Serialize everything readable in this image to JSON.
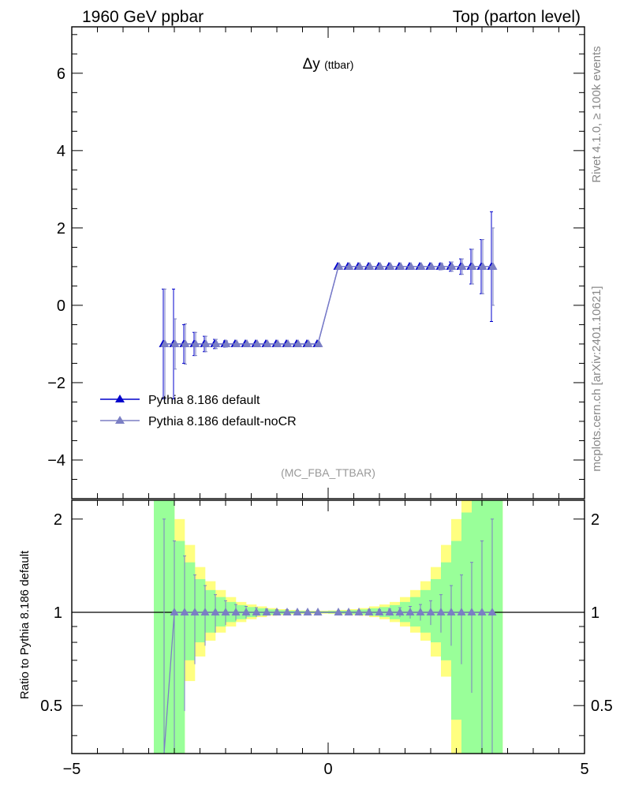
{
  "header": {
    "left": "1960 GeV ppbar",
    "right": "Top (parton level)"
  },
  "side_labels": {
    "rivet": "Rivet 4.1.0, ≥ 100k events",
    "mcplots": "mcplots.cern.ch [arXiv:2401.10621]"
  },
  "chart_data": [
    {
      "type": "line",
      "title": "Δy",
      "title_suffix": "(ttbar)",
      "analysis": "(MC_FBA_TTBAR)",
      "xlabel": "",
      "ylabel": "",
      "xlim": [
        -5,
        5
      ],
      "ylim": [
        -5,
        7.2
      ],
      "y_ticks": [
        "−4",
        "−2",
        "0",
        "2",
        "4",
        "6"
      ],
      "y_tick_values": [
        -4,
        -2,
        0,
        2,
        4,
        6
      ],
      "x": [
        -3.2,
        -3.0,
        -2.8,
        -2.6,
        -2.4,
        -2.2,
        -2.0,
        -1.8,
        -1.6,
        -1.4,
        -1.2,
        -1.0,
        -0.8,
        -0.6,
        -0.4,
        -0.2,
        0.2,
        0.4,
        0.6,
        0.8,
        1.0,
        1.2,
        1.4,
        1.6,
        1.8,
        2.0,
        2.2,
        2.4,
        2.6,
        2.8,
        3.0,
        3.2
      ],
      "series": [
        {
          "name": "Pythia 8.186 default",
          "color": "#0000cc",
          "values": [
            -1,
            -1,
            -1,
            -1,
            -1,
            -1,
            -1,
            -1,
            -1,
            -1,
            -1,
            -1,
            -1,
            -1,
            -1,
            -1,
            1,
            1,
            1,
            1,
            1,
            1,
            1,
            1,
            1,
            1,
            1,
            1,
            1,
            1,
            1,
            1
          ],
          "errors": [
            1.42,
            1.42,
            0.5,
            0.3,
            0.2,
            0.12,
            0.08,
            0.05,
            0.04,
            0.03,
            0.02,
            0.02,
            0.02,
            0.02,
            0.02,
            0.02,
            0.02,
            0.02,
            0.02,
            0.02,
            0.02,
            0.02,
            0.02,
            0.03,
            0.04,
            0.05,
            0.08,
            0.12,
            0.2,
            0.45,
            0.7,
            1.42
          ]
        },
        {
          "name": "Pythia 8.186 default-noCR",
          "color": "#7b7fc4",
          "values": [
            -1,
            -1,
            -1,
            -1,
            -1,
            -1,
            -1,
            -1,
            -1,
            -1,
            -1,
            -1,
            -1,
            -1,
            -1,
            -1,
            1,
            1,
            1,
            1,
            1,
            1,
            1,
            1,
            1,
            1,
            1,
            1,
            1,
            1,
            1,
            1
          ],
          "errors": [
            1.42,
            0.65,
            0.52,
            0.3,
            0.2,
            0.12,
            0.08,
            0.05,
            0.04,
            0.03,
            0.02,
            0.02,
            0.02,
            0.02,
            0.02,
            0.02,
            0.02,
            0.02,
            0.02,
            0.02,
            0.02,
            0.02,
            0.02,
            0.03,
            0.04,
            0.05,
            0.08,
            0.12,
            0.2,
            0.45,
            0.7,
            1.0
          ]
        }
      ]
    },
    {
      "type": "line",
      "title": "",
      "ylabel": "Ratio to Pythia 8.186 default",
      "xlim": [
        -5,
        5
      ],
      "ylim": [
        0.35,
        2.3
      ],
      "y_ticks": [
        "0.5",
        "1",
        "2"
      ],
      "y_tick_values": [
        0.5,
        1,
        2
      ],
      "x_ticks": [
        "−5",
        "0",
        "5"
      ],
      "x_tick_values": [
        -5,
        0,
        5
      ],
      "reference_line": 1,
      "bands": {
        "edges": [
          -3.4,
          -3.2,
          -3.0,
          -2.8,
          -2.6,
          -2.4,
          -2.2,
          -2.0,
          -1.8,
          -1.6,
          -1.4,
          -1.2,
          -1.0,
          -0.8,
          -0.6,
          -0.4,
          -0.2,
          0.0,
          0.2,
          0.4,
          0.6,
          0.8,
          1.0,
          1.2,
          1.4,
          1.6,
          1.8,
          2.0,
          2.2,
          2.4,
          2.6,
          2.8,
          3.0,
          3.2,
          3.4
        ],
        "yellow": {
          "color": "#ffff80",
          "low": [
            0.3,
            0.3,
            0.3,
            0.6,
            0.72,
            0.81,
            0.86,
            0.9,
            0.93,
            0.95,
            0.965,
            0.975,
            0.98,
            0.985,
            0.988,
            0.99,
            0.99,
            0.988,
            0.985,
            0.98,
            0.975,
            0.965,
            0.95,
            0.93,
            0.9,
            0.86,
            0.81,
            0.72,
            0.62,
            0.3,
            0.3,
            0.3,
            0.3,
            0.3
          ],
          "high": [
            2.4,
            2.4,
            2.0,
            1.65,
            1.4,
            1.26,
            1.18,
            1.12,
            1.08,
            1.06,
            1.045,
            1.032,
            1.024,
            1.018,
            1.014,
            1.012,
            1.012,
            1.014,
            1.018,
            1.024,
            1.032,
            1.045,
            1.06,
            1.08,
            1.12,
            1.18,
            1.26,
            1.4,
            1.65,
            2.0,
            2.4,
            2.4,
            2.4,
            2.4
          ]
        },
        "green": {
          "color": "#99ff99",
          "low": [
            0.3,
            0.3,
            0.3,
            0.7,
            0.8,
            0.86,
            0.9,
            0.93,
            0.95,
            0.965,
            0.975,
            0.982,
            0.986,
            0.99,
            0.992,
            0.994,
            0.994,
            0.992,
            0.99,
            0.986,
            0.982,
            0.975,
            0.965,
            0.95,
            0.93,
            0.9,
            0.86,
            0.8,
            0.7,
            0.45,
            0.3,
            0.3,
            0.3,
            0.3
          ],
          "high": [
            2.4,
            2.4,
            1.7,
            1.45,
            1.28,
            1.18,
            1.12,
            1.08,
            1.055,
            1.04,
            1.03,
            1.022,
            1.016,
            1.012,
            1.01,
            1.008,
            1.008,
            1.01,
            1.012,
            1.016,
            1.022,
            1.03,
            1.04,
            1.055,
            1.08,
            1.12,
            1.18,
            1.28,
            1.45,
            1.7,
            2.1,
            2.4,
            2.4,
            2.4
          ]
        }
      },
      "ratio_errors": [
        1.0,
        0.7,
        0.52,
        0.32,
        0.22,
        0.14,
        0.09,
        0.06,
        0.045,
        0.035,
        0.025,
        0.02,
        0.02,
        0.015,
        0.015,
        0.01,
        0.01,
        0.015,
        0.015,
        0.02,
        0.02,
        0.025,
        0.035,
        0.045,
        0.06,
        0.09,
        0.14,
        0.22,
        0.32,
        0.45,
        0.7,
        1.0
      ]
    }
  ]
}
